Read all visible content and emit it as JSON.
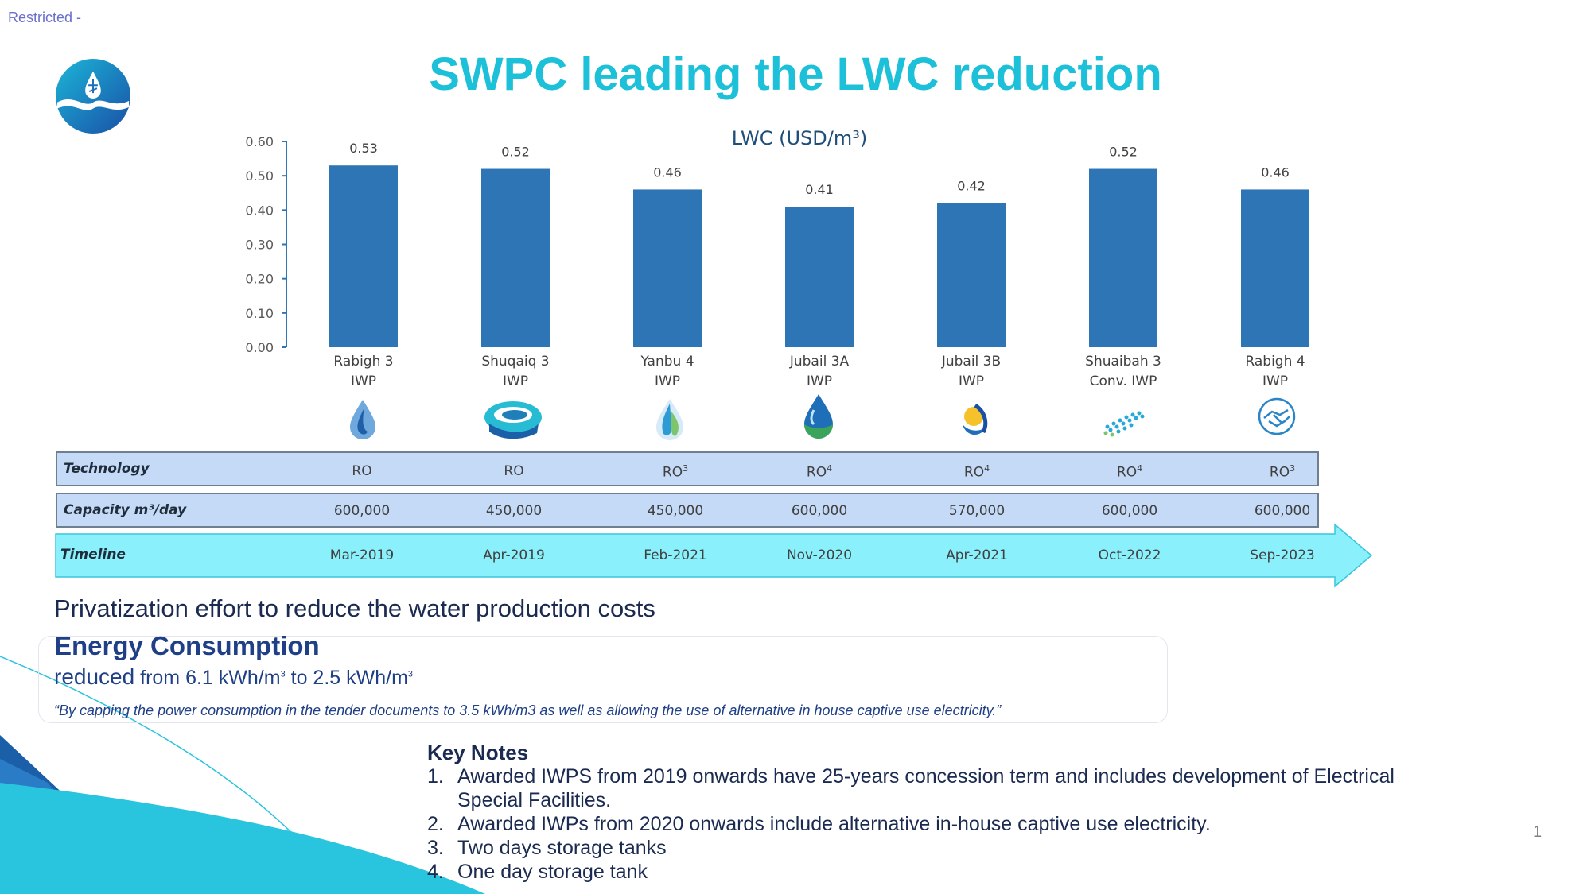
{
  "header": {
    "restricted": "Restricted -",
    "title": "SWPC leading the LWC reduction",
    "page_number": "1"
  },
  "colors": {
    "bar": "#2e75b6",
    "title": "#1cc0d8",
    "timeline": "#8af0fb",
    "row": "#c5daf7"
  },
  "chart_data": {
    "type": "bar",
    "title": "LWC (USD/m³)",
    "categories": [
      "Rabigh 3 IWP",
      "Shuqaiq 3 IWP",
      "Yanbu 4 IWP",
      "Jubail 3A IWP",
      "Jubail 3B IWP",
      "Shuaibah 3 Conv. IWP",
      "Rabigh 4 IWP"
    ],
    "category_lines": [
      [
        "Rabigh 3",
        "IWP"
      ],
      [
        "Shuqaiq 3",
        "IWP"
      ],
      [
        "Yanbu 4",
        "IWP"
      ],
      [
        "Jubail 3A",
        "IWP"
      ],
      [
        "Jubail 3B",
        "IWP"
      ],
      [
        "Shuaibah 3",
        "Conv. IWP"
      ],
      [
        "Rabigh 4",
        "IWP"
      ]
    ],
    "values": [
      0.53,
      0.52,
      0.46,
      0.41,
      0.42,
      0.52,
      0.46
    ],
    "value_labels": [
      "0.53",
      "0.52",
      "0.46",
      "0.41",
      "0.42",
      "0.52",
      "0.46"
    ],
    "ylim": [
      0,
      0.6
    ],
    "yticks": [
      0,
      0.1,
      0.2,
      0.3,
      0.4,
      0.5,
      0.6
    ],
    "ytick_labels": [
      "0.00",
      "0.10",
      "0.20",
      "0.30",
      "0.40",
      "0.50",
      "0.60"
    ],
    "grid": false,
    "legend": "none"
  },
  "project_icons": [
    "water-drop-icon",
    "wave-swirl-icon",
    "leaf-drop-icon",
    "blue-green-drop-icon",
    "sun-drop-icon",
    "dots-pattern-icon",
    "handshake-icon"
  ],
  "table": {
    "technology": {
      "header": "Technology",
      "cells": [
        {
          "text": "RO",
          "sup": ""
        },
        {
          "text": "RO",
          "sup": ""
        },
        {
          "text": "RO",
          "sup": "3"
        },
        {
          "text": "RO",
          "sup": "4"
        },
        {
          "text": "RO",
          "sup": "4"
        },
        {
          "text": "RO",
          "sup": "4"
        },
        {
          "text": "RO",
          "sup": "3"
        }
      ]
    },
    "capacity": {
      "header": "Capacity m³/day",
      "cells": [
        "600,000",
        "450,000",
        "450,000",
        "600,000",
        "570,000",
        "600,000",
        "600,000"
      ]
    },
    "timeline": {
      "header": "Timeline",
      "cells": [
        "Mar-2019",
        "Apr-2019",
        "Feb-2021",
        "Nov-2020",
        "Apr-2021",
        "Oct-2022",
        "Sep-2023"
      ]
    }
  },
  "privatization": "Privatization effort to reduce the water production costs",
  "energy": {
    "title": "Energy Consumption",
    "reduced": "reduced",
    "from_text": " from 6.1 kWh/m",
    "sup1": "3",
    "to_text": " to 2.5 kWh/m",
    "sup2": "3",
    "quote": "“By capping the power consumption in the tender documents to 3.5 kWh/m3 as well as allowing the use of alternative in house captive use electricity.”"
  },
  "key_notes": {
    "title": "Key Notes",
    "items": [
      {
        "num": "1.",
        "text": "Awarded IWPS from 2019 onwards have 25-years concession term and includes development of Electrical Special Facilities."
      },
      {
        "num": "2.",
        "text": "Awarded IWPs from 2020 onwards include alternative in-house captive use electricity."
      },
      {
        "num": "3.",
        "text": "Two days storage tanks"
      },
      {
        "num": "4.",
        "text": "One day storage tank"
      }
    ]
  }
}
